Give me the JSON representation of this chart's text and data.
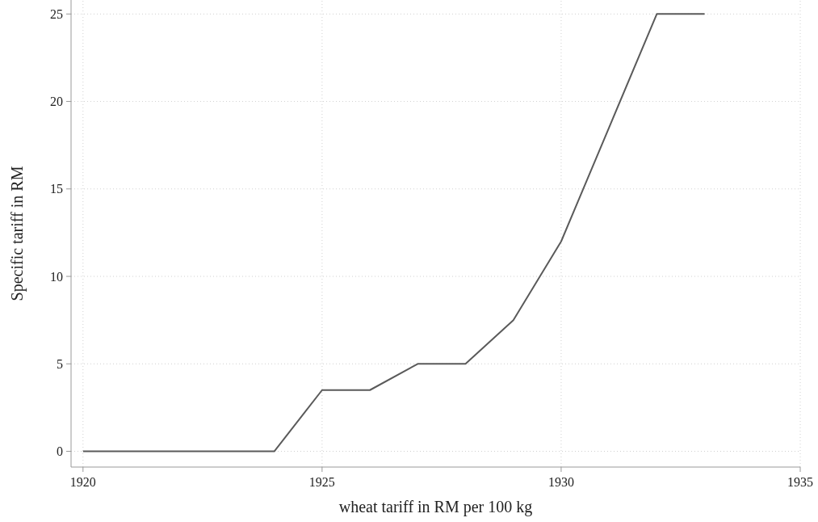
{
  "chart_data": {
    "type": "line",
    "xlabel": "wheat tariff in RM per 100 kg",
    "ylabel": "Specific tariff in RM",
    "x": [
      1920,
      1921,
      1922,
      1923,
      1924,
      1925,
      1926,
      1927,
      1928,
      1929,
      1930,
      1931,
      1932,
      1933
    ],
    "series": [
      {
        "color": "#5a5a5a",
        "values": [
          0,
          0,
          0,
          0,
          0,
          3.5,
          3.5,
          5,
          5,
          7.5,
          12,
          18.5,
          25,
          25
        ]
      }
    ],
    "xlim": [
      1919.75,
      1935
    ],
    "xticks": [
      1920,
      1925,
      1930,
      1935
    ],
    "ylim": [
      -0.9,
      25.8
    ],
    "yticks": [
      0,
      5,
      10,
      15,
      20,
      25
    ],
    "grid": true,
    "line_style": "solid",
    "marker": "none"
  }
}
